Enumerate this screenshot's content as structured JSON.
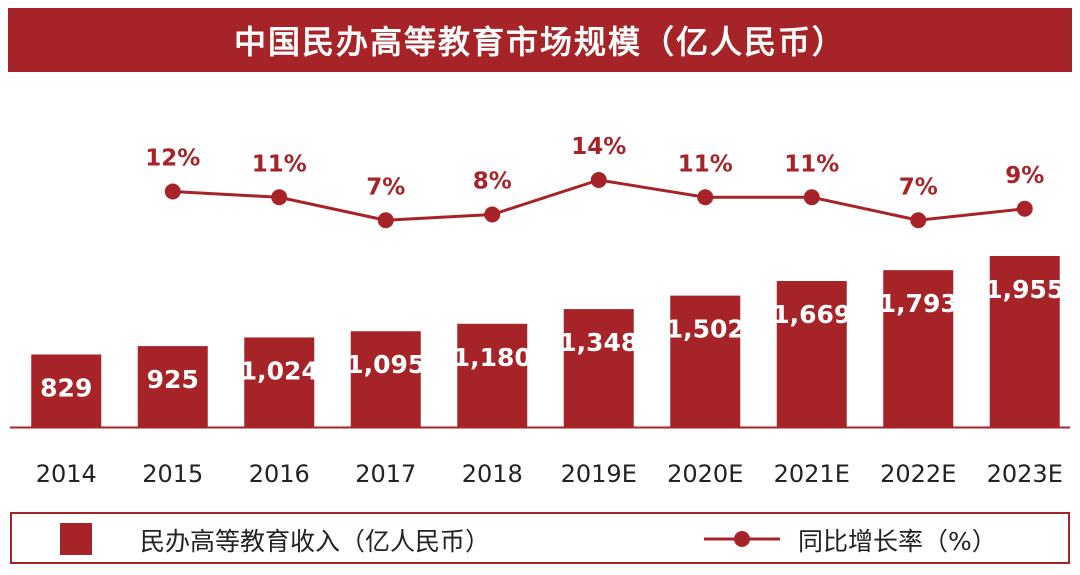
{
  "chart_data": {
    "type": "bar",
    "title": "中国民办高等教育市场规模（亿人民币）",
    "categories": [
      "2014",
      "2015",
      "2016",
      "2017",
      "2018",
      "2019E",
      "2020E",
      "2021E",
      "2022E",
      "2023E"
    ],
    "series": [
      {
        "name": "民办高等教育收入（亿人民币）",
        "type": "bar",
        "values": [
          829,
          925,
          1024,
          1095,
          1180,
          1348,
          1502,
          1669,
          1793,
          1955
        ],
        "labels": [
          "829",
          "925",
          "1,024",
          "1,095",
          "1,180",
          "1,348",
          "1,502",
          "1,669",
          "1,793",
          "1,955"
        ]
      },
      {
        "name": "同比增长率（%）",
        "type": "line",
        "values": [
          null,
          12,
          11,
          7,
          8,
          14,
          11,
          11,
          7,
          9
        ],
        "labels": [
          "",
          "12%",
          "11%",
          "7%",
          "8%",
          "14%",
          "11%",
          "11%",
          "7%",
          "9%"
        ]
      }
    ],
    "legend_position": "bottom",
    "grid": false,
    "colors": {
      "bar": "#a62428",
      "line": "#a62428"
    }
  }
}
